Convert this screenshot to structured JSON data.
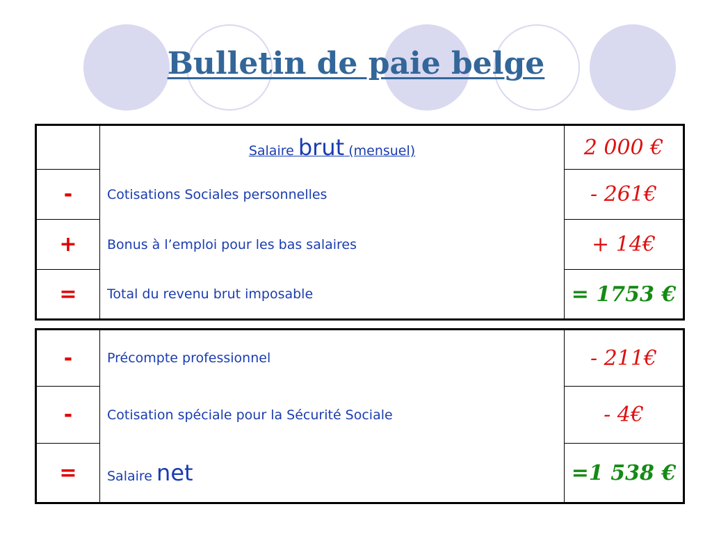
{
  "title": "Bulletin de paie belge",
  "colors": {
    "title": "#336699",
    "text": "#1a3cb0",
    "negative": "#dd1111",
    "total": "#158a15",
    "circle": "#d9d9f0"
  },
  "table1": {
    "header": {
      "prefix": "Salaire",
      "word": "brut",
      "suffix": "(mensuel)",
      "amount": "2 000 €"
    },
    "rows": [
      {
        "sign": "-",
        "label": "Cotisations Sociales personnelles",
        "amount": "- 261€"
      },
      {
        "sign": "+",
        "label": "Bonus à l’emploi pour les bas salaires",
        "amount": "+ 14€"
      },
      {
        "sign": "=",
        "label": "Total du revenu brut imposable",
        "amount": "= 1753 €"
      }
    ]
  },
  "table2": {
    "rows": [
      {
        "sign": "-",
        "label": "Précompte professionnel",
        "amount": "- 211€"
      },
      {
        "sign": "-",
        "label": "Cotisation spéciale pour la Sécurité Sociale",
        "amount": "- 4€"
      }
    ],
    "net": {
      "sign": "=",
      "prefix": "Salaire",
      "word": "net",
      "amount": "=1 538 €"
    }
  }
}
